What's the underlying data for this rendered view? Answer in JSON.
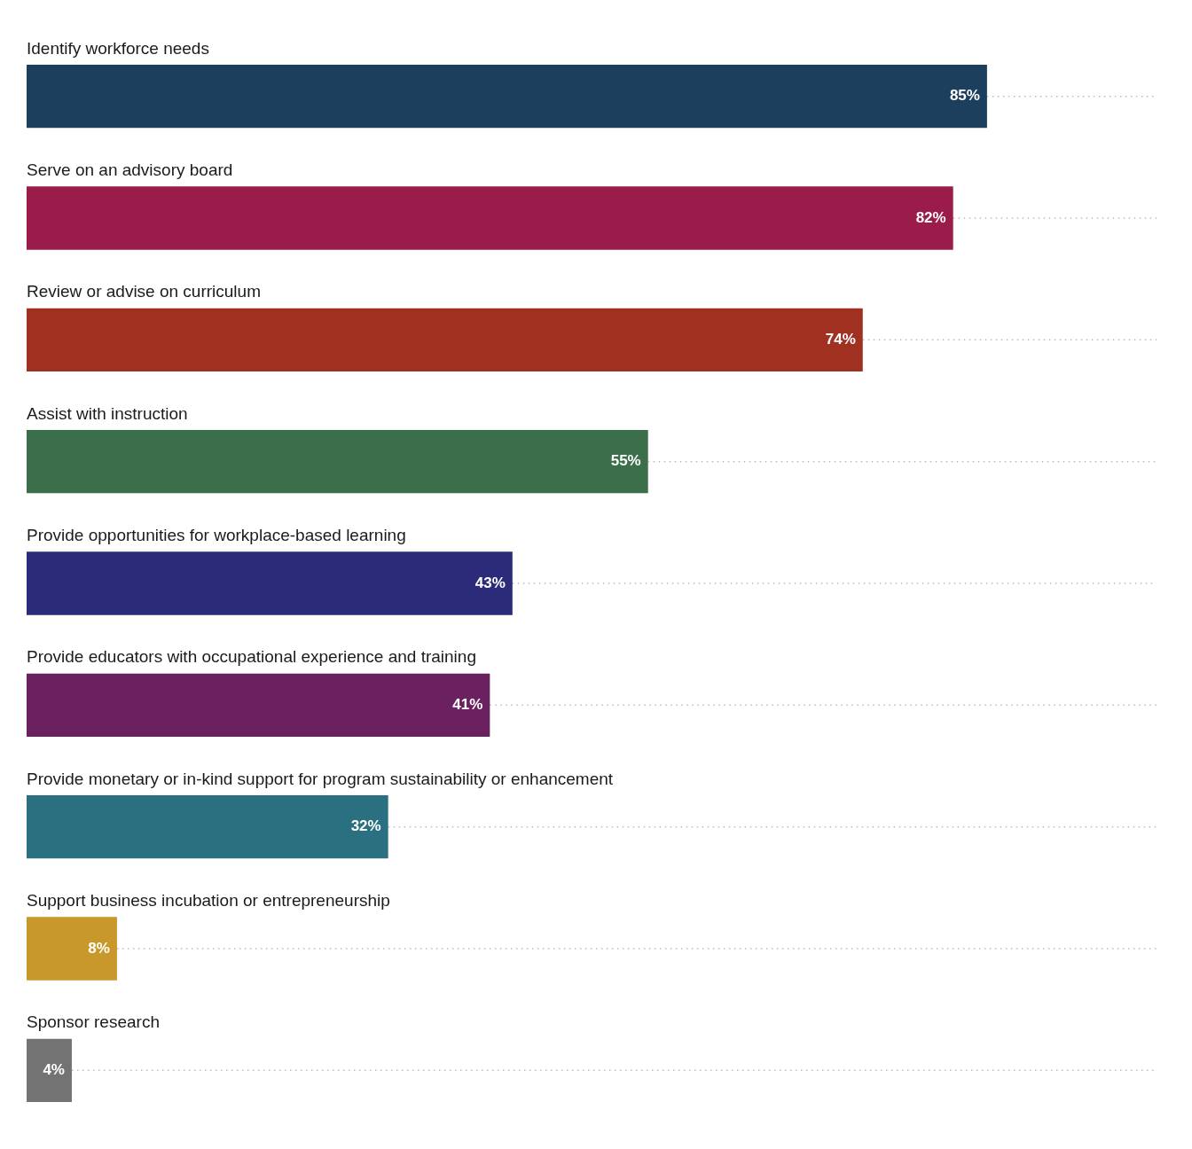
{
  "chart_data": {
    "type": "bar",
    "orientation": "horizontal",
    "categories": [
      "Identify workforce needs",
      "Serve on an advisory board",
      "Review or advise on curriculum",
      "Assist with instruction",
      "Provide opportunities for workplace-based learning",
      "Provide educators with occupational experience and training",
      "Provide monetary or in-kind support for program sustainability or enhancement",
      "Support business incubation or entrepreneurship",
      "Sponsor research"
    ],
    "values": [
      85,
      82,
      74,
      55,
      43,
      41,
      32,
      8,
      4
    ],
    "value_labels": [
      "85%",
      "82%",
      "74%",
      "55%",
      "43%",
      "41%",
      "32%",
      "8%",
      "4%"
    ],
    "colors": [
      "#1d3f5e",
      "#9b1b4b",
      "#a03020",
      "#3b6e4a",
      "#2b2b7a",
      "#6b2060",
      "#2a7080",
      "#c8992a",
      "#737373"
    ],
    "xlim": [
      0,
      100
    ],
    "grid": false,
    "data_labels": true,
    "tick_labels": "y"
  }
}
